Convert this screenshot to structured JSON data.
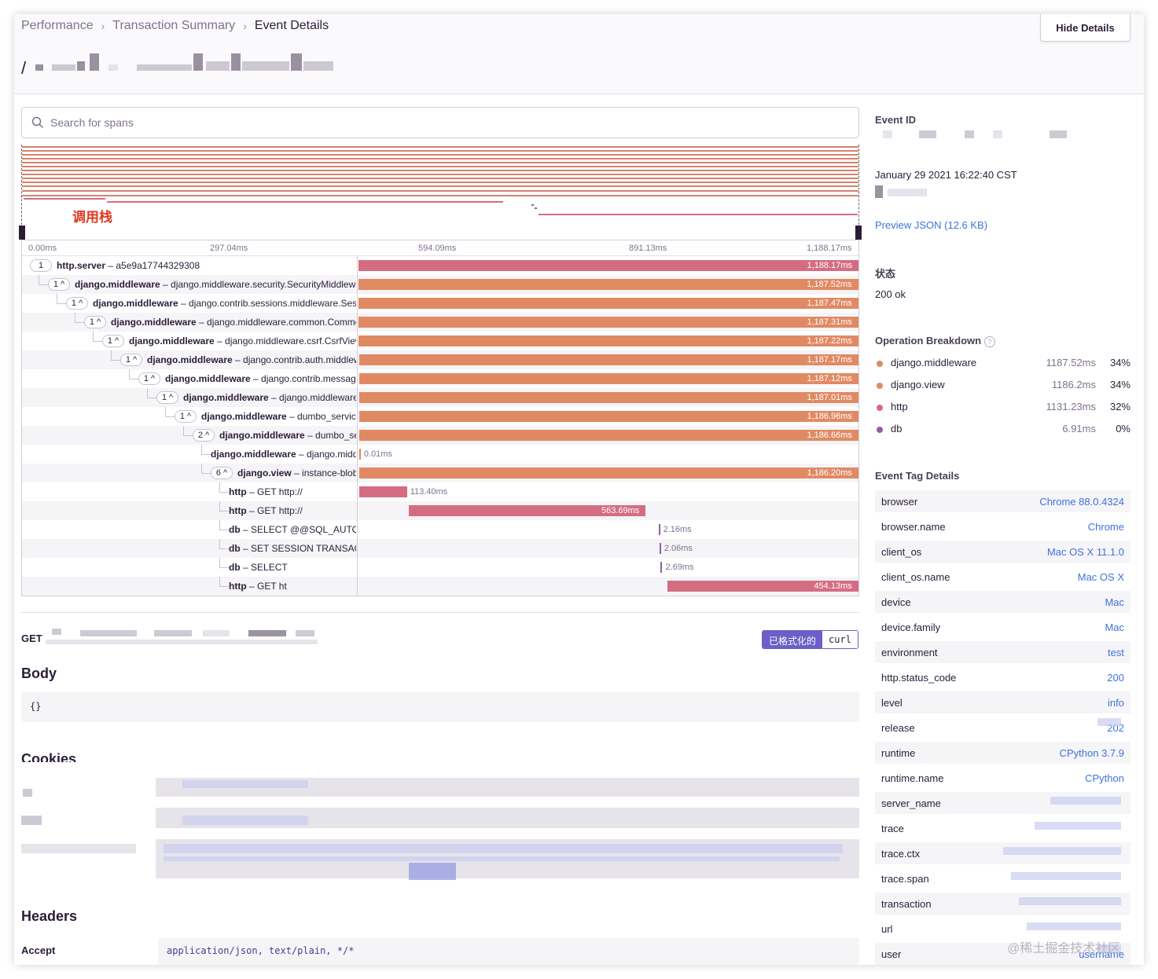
{
  "breadcrumbs": [
    "Performance",
    "Transaction Summary",
    "Event Details"
  ],
  "hide_details_label": "Hide Details",
  "transaction_title_prefix": "/",
  "search": {
    "placeholder": "Search for spans"
  },
  "minimap": {
    "annotation": "调用栈"
  },
  "timeline": {
    "ticks": [
      "0.00ms",
      "297.04ms",
      "594.09ms",
      "891.13ms",
      "1,188.17ms"
    ],
    "spans": [
      {
        "badge": "1",
        "op": "http.server",
        "desc": "a5e9a17744329308",
        "duration": "1,188.17ms",
        "color": "#d46d82",
        "start_frac": 0.0,
        "width_frac": 1.0,
        "depth": 0
      },
      {
        "badge": "1^",
        "op": "django.middleware",
        "desc": "django.middleware.security.SecurityMiddleware",
        "duration": "1,187.52ms",
        "color": "#e08a64",
        "start_frac": 0.0,
        "width_frac": 0.9995,
        "depth": 1
      },
      {
        "badge": "1^",
        "op": "django.middleware",
        "desc": "django.contrib.sessions.middleware.SessionMiddleware",
        "duration": "1,187.47ms",
        "color": "#e08a64",
        "start_frac": 0.0005,
        "width_frac": 0.9994,
        "depth": 2
      },
      {
        "badge": "1^",
        "op": "django.middleware",
        "desc": "django.middleware.common.CommonMiddleware",
        "duration": "1,187.31ms",
        "color": "#e08a64",
        "start_frac": 0.0006,
        "width_frac": 0.9993,
        "depth": 3
      },
      {
        "badge": "1^",
        "op": "django.middleware",
        "desc": "django.middleware.csrf.CsrfViewMiddleware",
        "duration": "1,187.22ms",
        "color": "#e08a64",
        "start_frac": 0.0007,
        "width_frac": 0.9992,
        "depth": 4
      },
      {
        "badge": "1^",
        "op": "django.middleware",
        "desc": "django.contrib.auth.middleware",
        "duration": "1,187.17ms",
        "color": "#e08a64",
        "start_frac": 0.0008,
        "width_frac": 0.9991,
        "depth": 5
      },
      {
        "badge": "1^",
        "op": "django.middleware",
        "desc": "django.contrib.messages.middleware",
        "duration": "1,187.12ms",
        "color": "#e08a64",
        "start_frac": 0.0009,
        "width_frac": 0.999,
        "depth": 6
      },
      {
        "badge": "1^",
        "op": "django.middleware",
        "desc": "django.middleware.clickjacking",
        "duration": "1,187.01ms",
        "color": "#e08a64",
        "start_frac": 0.001,
        "width_frac": 0.9989,
        "depth": 7
      },
      {
        "badge": "1^",
        "op": "django.middleware",
        "desc": "dumbo_service.middleware",
        "duration": "1,186.96ms",
        "color": "#e08a64",
        "start_frac": 0.0011,
        "width_frac": 0.9988,
        "depth": 8
      },
      {
        "badge": "2^",
        "op": "django.middleware",
        "desc": "dumbo_service.middleware",
        "duration": "1,186.66ms",
        "color": "#e08a64",
        "start_frac": 0.0012,
        "width_frac": 0.9987,
        "depth": 9
      },
      {
        "badge": "",
        "op": "django.middleware",
        "desc": "django.middleware",
        "duration": "0.01ms",
        "color": "#e08a64",
        "start_frac": 0.0013,
        "width_frac": 0.0015,
        "depth": 10
      },
      {
        "badge": "6^",
        "op": "django.view",
        "desc": "instance-blob",
        "duration": "1,186.20ms",
        "color": "#e08a64",
        "start_frac": 0.0013,
        "width_frac": 0.9986,
        "depth": 10
      },
      {
        "badge": "",
        "op": "http",
        "desc": "GET http://",
        "duration": "113.40ms",
        "color": "#d46d82",
        "start_frac": 0.0016,
        "width_frac": 0.0954,
        "depth": 11
      },
      {
        "badge": "",
        "op": "http",
        "desc": "GET http://",
        "duration": "563.69ms",
        "color": "#d46d82",
        "start_frac": 0.1,
        "width_frac": 0.4744,
        "depth": 11
      },
      {
        "badge": "",
        "op": "db",
        "desc": "SELECT @@SQL_AUTO_IS_NULL",
        "duration": "2.16ms",
        "color": "#8f5fa4",
        "start_frac": 0.6,
        "width_frac": 0.002,
        "depth": 11
      },
      {
        "badge": "",
        "op": "db",
        "desc": "SET SESSION TRANSACTION",
        "duration": "2.06ms",
        "color": "#8f5fa4",
        "start_frac": 0.602,
        "width_frac": 0.002,
        "depth": 11
      },
      {
        "badge": "",
        "op": "db",
        "desc": "SELECT",
        "duration": "2.69ms",
        "color": "#8f5fa4",
        "start_frac": 0.6045,
        "width_frac": 0.0023,
        "depth": 11
      },
      {
        "badge": "",
        "op": "http",
        "desc": "GET ht",
        "duration": "454.13ms",
        "color": "#d46d82",
        "start_frac": 0.6174,
        "width_frac": 0.3822,
        "depth": 11
      }
    ]
  },
  "request": {
    "method": "GET",
    "toggle_formatted": "已格式化的",
    "toggle_curl": "curl",
    "body_title": "Body",
    "body_value": "{}",
    "cookies_title": "Cookies",
    "headers_title": "Headers",
    "headers": [
      {
        "key": "Accept",
        "value": "application/json, text/plain, */*"
      }
    ]
  },
  "sidebar": {
    "event_id_title": "Event ID",
    "event_date": "January 29 2021 16:22:40 CST",
    "preview_json": "Preview JSON (12.6 KB)",
    "status_title": "状态",
    "status_value": "200 ok",
    "breakdown_title": "Operation Breakdown",
    "breakdown": [
      {
        "name": "django.middleware",
        "duration": "1187.52ms",
        "pct": "34%",
        "color": "#e08a64"
      },
      {
        "name": "django.view",
        "duration": "1186.2ms",
        "pct": "34%",
        "color": "#e08a64"
      },
      {
        "name": "http",
        "duration": "1131.23ms",
        "pct": "32%",
        "color": "#d46d82"
      },
      {
        "name": "db",
        "duration": "6.91ms",
        "pct": "0%",
        "color": "#8f5fa4"
      }
    ],
    "tags_title": "Event Tag Details",
    "tags": [
      {
        "key": "browser",
        "value": "Chrome 88.0.4324"
      },
      {
        "key": "browser.name",
        "value": "Chrome"
      },
      {
        "key": "client_os",
        "value": "Mac OS X 11.1.0"
      },
      {
        "key": "client_os.name",
        "value": "Mac OS X"
      },
      {
        "key": "device",
        "value": "Mac"
      },
      {
        "key": "device.family",
        "value": "Mac"
      },
      {
        "key": "environment",
        "value": "test"
      },
      {
        "key": "http.status_code",
        "value": "200"
      },
      {
        "key": "level",
        "value": "info"
      },
      {
        "key": "release",
        "value": "202"
      },
      {
        "key": "runtime",
        "value": "CPython 3.7.9"
      },
      {
        "key": "runtime.name",
        "value": "CPython"
      },
      {
        "key": "server_name",
        "value": ""
      },
      {
        "key": "trace",
        "value": ""
      },
      {
        "key": "trace.ctx",
        "value": ""
      },
      {
        "key": "trace.span",
        "value": ""
      },
      {
        "key": "transaction",
        "value": ""
      },
      {
        "key": "url",
        "value": ""
      },
      {
        "key": "user",
        "value": "username"
      }
    ]
  },
  "watermark": "@稀土掘金技术社区"
}
